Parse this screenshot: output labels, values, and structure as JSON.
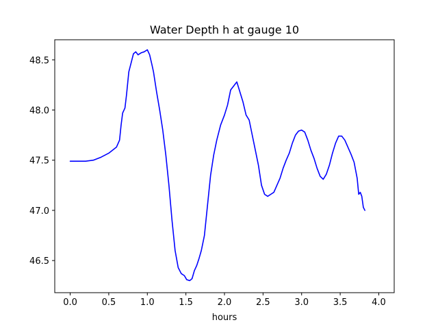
{
  "chart_data": {
    "type": "line",
    "title": "Water Depth h at gauge 10",
    "xlabel": "hours",
    "ylabel": "",
    "xlim": [
      -0.2,
      4.2
    ],
    "ylim": [
      46.18,
      48.7
    ],
    "x_ticks": [
      0.0,
      0.5,
      1.0,
      1.5,
      2.0,
      2.5,
      3.0,
      3.5,
      4.0
    ],
    "x_tick_labels": [
      "0.0",
      "0.5",
      "1.0",
      "1.5",
      "2.0",
      "2.5",
      "3.0",
      "3.5",
      "4.0"
    ],
    "y_ticks": [
      46.5,
      47.0,
      47.5,
      48.0,
      48.5
    ],
    "y_tick_labels": [
      "46.5",
      "47.0",
      "47.5",
      "48.0",
      "48.5"
    ],
    "grid": false,
    "series": [
      {
        "color": "#0000ff",
        "points": [
          [
            0.0,
            47.49
          ],
          [
            0.1,
            47.49
          ],
          [
            0.2,
            47.49
          ],
          [
            0.3,
            47.5
          ],
          [
            0.4,
            47.53
          ],
          [
            0.5,
            47.57
          ],
          [
            0.6,
            47.63
          ],
          [
            0.64,
            47.7
          ],
          [
            0.66,
            47.85
          ],
          [
            0.68,
            47.97
          ],
          [
            0.71,
            48.02
          ],
          [
            0.73,
            48.15
          ],
          [
            0.76,
            48.38
          ],
          [
            0.79,
            48.47
          ],
          [
            0.82,
            48.56
          ],
          [
            0.85,
            48.58
          ],
          [
            0.88,
            48.55
          ],
          [
            0.92,
            48.57
          ],
          [
            0.96,
            48.58
          ],
          [
            1.0,
            48.6
          ],
          [
            1.03,
            48.55
          ],
          [
            1.06,
            48.45
          ],
          [
            1.08,
            48.38
          ],
          [
            1.12,
            48.18
          ],
          [
            1.16,
            48.0
          ],
          [
            1.2,
            47.8
          ],
          [
            1.24,
            47.55
          ],
          [
            1.28,
            47.25
          ],
          [
            1.32,
            46.9
          ],
          [
            1.36,
            46.6
          ],
          [
            1.4,
            46.43
          ],
          [
            1.44,
            46.37
          ],
          [
            1.48,
            46.35
          ],
          [
            1.51,
            46.31
          ],
          [
            1.55,
            46.3
          ],
          [
            1.58,
            46.32
          ],
          [
            1.61,
            46.4
          ],
          [
            1.64,
            46.45
          ],
          [
            1.67,
            46.52
          ],
          [
            1.7,
            46.6
          ],
          [
            1.74,
            46.75
          ],
          [
            1.78,
            47.05
          ],
          [
            1.82,
            47.35
          ],
          [
            1.86,
            47.55
          ],
          [
            1.9,
            47.7
          ],
          [
            1.95,
            47.85
          ],
          [
            2.0,
            47.95
          ],
          [
            2.04,
            48.05
          ],
          [
            2.08,
            48.2
          ],
          [
            2.12,
            48.24
          ],
          [
            2.16,
            48.28
          ],
          [
            2.2,
            48.18
          ],
          [
            2.24,
            48.08
          ],
          [
            2.28,
            47.95
          ],
          [
            2.32,
            47.9
          ],
          [
            2.36,
            47.75
          ],
          [
            2.4,
            47.6
          ],
          [
            2.44,
            47.45
          ],
          [
            2.48,
            47.25
          ],
          [
            2.52,
            47.16
          ],
          [
            2.56,
            47.14
          ],
          [
            2.6,
            47.16
          ],
          [
            2.64,
            47.18
          ],
          [
            2.68,
            47.25
          ],
          [
            2.72,
            47.32
          ],
          [
            2.76,
            47.42
          ],
          [
            2.8,
            47.5
          ],
          [
            2.84,
            47.57
          ],
          [
            2.88,
            47.67
          ],
          [
            2.92,
            47.75
          ],
          [
            2.96,
            47.79
          ],
          [
            3.0,
            47.8
          ],
          [
            3.04,
            47.78
          ],
          [
            3.08,
            47.7
          ],
          [
            3.12,
            47.6
          ],
          [
            3.16,
            47.52
          ],
          [
            3.2,
            47.42
          ],
          [
            3.24,
            47.34
          ],
          [
            3.28,
            47.31
          ],
          [
            3.32,
            47.36
          ],
          [
            3.36,
            47.45
          ],
          [
            3.4,
            47.57
          ],
          [
            3.44,
            47.67
          ],
          [
            3.48,
            47.74
          ],
          [
            3.52,
            47.74
          ],
          [
            3.56,
            47.7
          ],
          [
            3.6,
            47.63
          ],
          [
            3.64,
            47.56
          ],
          [
            3.68,
            47.48
          ],
          [
            3.72,
            47.32
          ],
          [
            3.74,
            47.16
          ],
          [
            3.76,
            47.18
          ],
          [
            3.78,
            47.14
          ],
          [
            3.8,
            47.03
          ],
          [
            3.82,
            47.0
          ]
        ]
      }
    ]
  }
}
